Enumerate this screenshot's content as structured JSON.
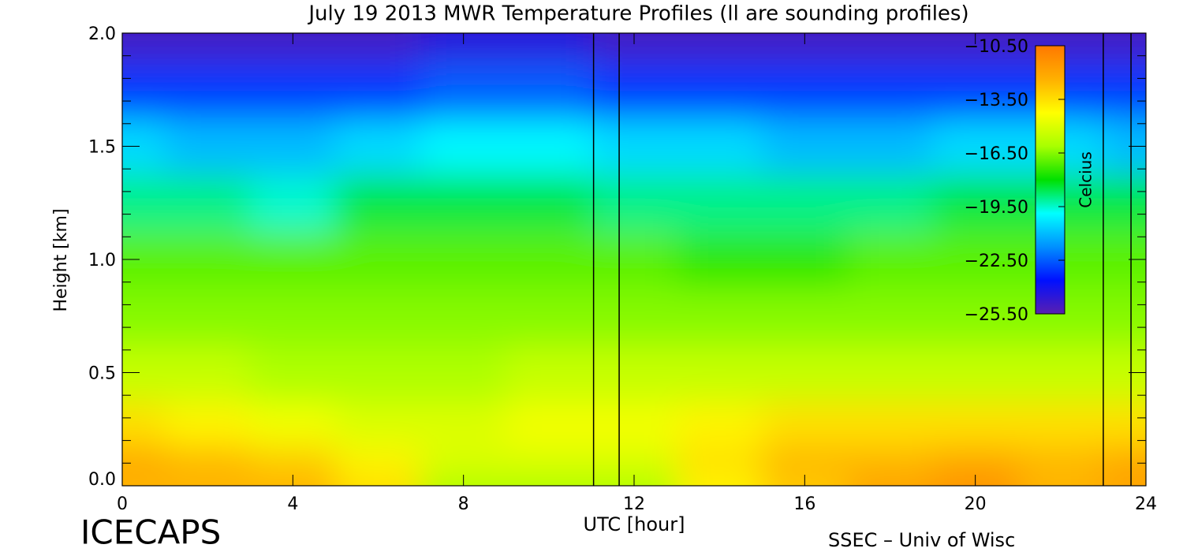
{
  "chart_data": {
    "type": "heatmap",
    "title": "July 19 2013 MWR Temperature Profiles (ll are sounding profiles)",
    "xlabel": "UTC [hour]",
    "ylabel": "Height [km]",
    "brand_left": "ICECAPS",
    "brand_right": "SSEC – Univ of Wisc",
    "x": [
      0,
      2,
      4,
      6,
      8,
      10,
      12,
      14,
      16,
      18,
      20,
      22,
      24
    ],
    "y": [
      0,
      0.1,
      0.25,
      0.5,
      0.75,
      1.0,
      1.25,
      1.5,
      1.75,
      2.0
    ],
    "values": [
      [
        -12.5,
        -12.5,
        -12.5,
        -13.5,
        -16,
        -16,
        -16,
        -14,
        -13,
        -12,
        -11.5,
        -12.5,
        -12
      ],
      [
        -12,
        -12.5,
        -13,
        -14,
        -15,
        -15,
        -15,
        -13.5,
        -12.5,
        -12.5,
        -12,
        -12.5,
        -12
      ],
      [
        -13.5,
        -14,
        -14.5,
        -15,
        -15,
        -14.5,
        -14.5,
        -14,
        -13.5,
        -13.5,
        -13.5,
        -13.5,
        -13.5
      ],
      [
        -15.5,
        -15.5,
        -16,
        -16,
        -16,
        -15.5,
        -15.5,
        -15.5,
        -15.5,
        -15.5,
        -15.5,
        -15.5,
        -15.5
      ],
      [
        -16.5,
        -16.5,
        -16.5,
        -16.5,
        -16.5,
        -16.5,
        -16.5,
        -16.5,
        -16.5,
        -16.5,
        -16.5,
        -16.5,
        -16.5
      ],
      [
        -17,
        -17,
        -17,
        -17,
        -17,
        -17,
        -17,
        -17.5,
        -17.5,
        -17,
        -17,
        -17,
        -17
      ],
      [
        -19,
        -19,
        -19.5,
        -18.5,
        -18.5,
        -18.5,
        -19,
        -19,
        -19,
        -19,
        -18.5,
        -18.5,
        -18.5
      ],
      [
        -20.5,
        -21,
        -21,
        -20.5,
        -20,
        -20,
        -20.5,
        -20.5,
        -21,
        -21,
        -20.5,
        -20.5,
        -21
      ],
      [
        -23,
        -23,
        -23,
        -23,
        -22.5,
        -22.5,
        -23,
        -23,
        -23,
        -23,
        -23,
        -23,
        -23
      ],
      [
        -25,
        -25,
        -25,
        -25,
        -24.5,
        -24.5,
        -25,
        -25,
        -25,
        -25,
        -25,
        -25,
        -25
      ]
    ],
    "xlim": [
      0,
      24
    ],
    "xticks": [
      0,
      4,
      8,
      12,
      16,
      20,
      24
    ],
    "ylim": [
      0,
      2
    ],
    "yticks": [
      {
        "value": 0,
        "label": "0.0"
      },
      0.5,
      {
        "value": 1,
        "label": "1.0"
      },
      1.5,
      {
        "value": 2,
        "label": "2.0"
      }
    ],
    "yminorticks": [
      0.1,
      0.2,
      0.3,
      0.4,
      0.6,
      0.7,
      0.8,
      0.9,
      1.1,
      1.2,
      1.3,
      1.4,
      1.6,
      1.7,
      1.8,
      1.9
    ],
    "sounding_profiles": [
      11.05,
      11.65,
      23.0,
      23.65
    ],
    "colorbar": {
      "label": "Celcius",
      "lim": [
        -25.5,
        -10.5
      ],
      "ticks": [
        {
          "value": -10.5,
          "label": "−10.50"
        },
        {
          "value": -13.5,
          "label": "−13.50"
        },
        {
          "value": -16.5,
          "label": "−16.50"
        },
        {
          "value": -19.5,
          "label": "−19.50"
        },
        {
          "value": -22.5,
          "label": "−22.50"
        },
        {
          "value": -25.5,
          "label": "−25.50"
        }
      ],
      "colormap": [
        "#5a1fb0",
        "#0010ff",
        "#0090ff",
        "#00ffff",
        "#00e000",
        "#a8ff00",
        "#ffff00",
        "#ffb000",
        "#ff7800"
      ]
    }
  }
}
